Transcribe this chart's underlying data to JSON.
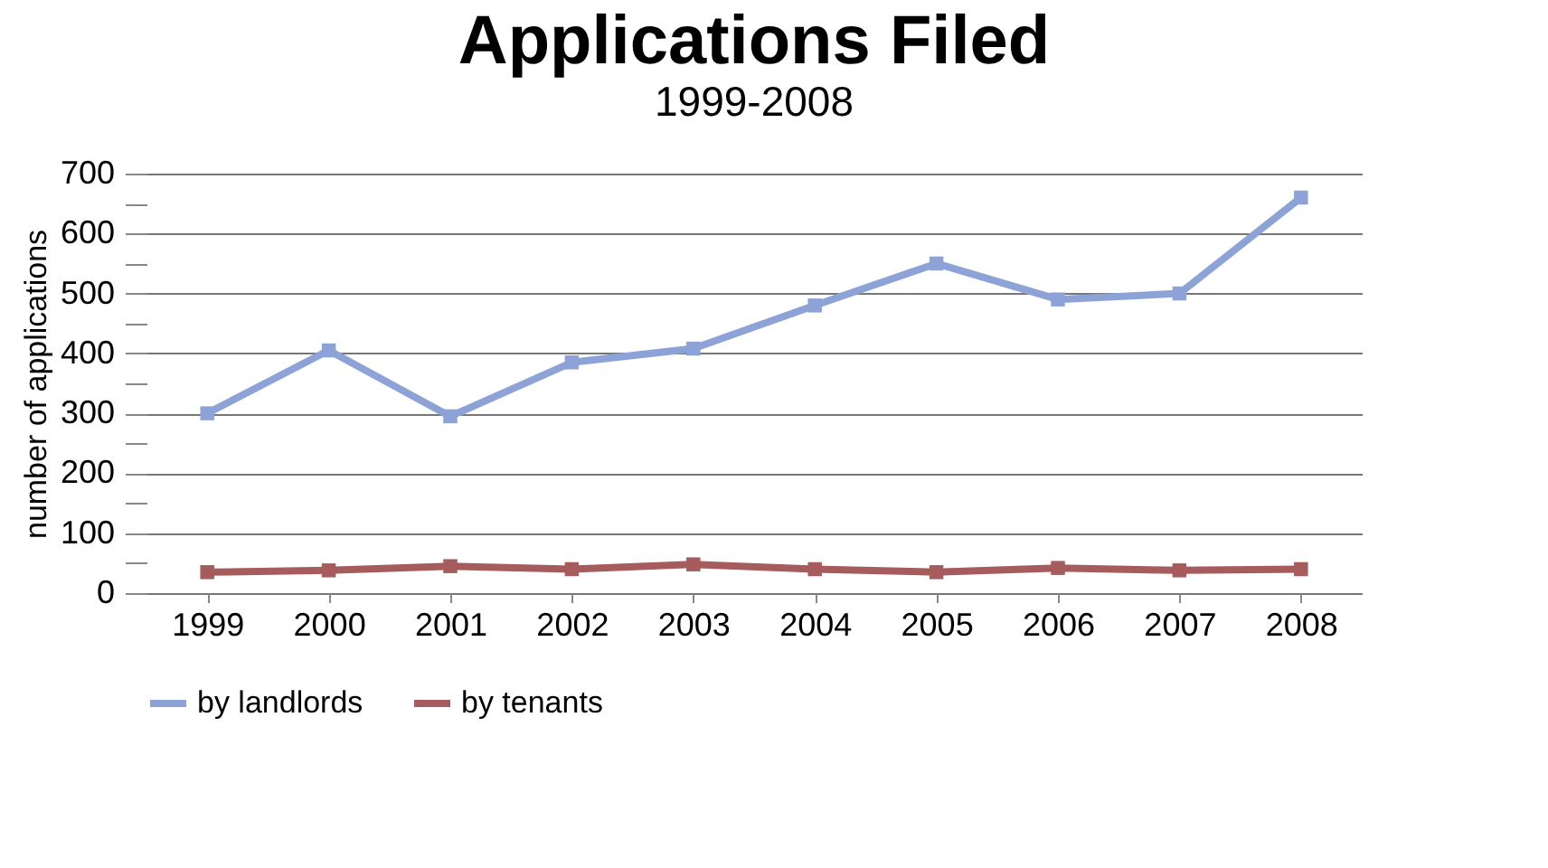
{
  "chart_data": {
    "type": "line",
    "title": "Applications Filed",
    "subtitle": "1999-2008",
    "ylabel": "number of applications",
    "categories": [
      "1999",
      "2000",
      "2001",
      "2002",
      "2003",
      "2004",
      "2005",
      "2006",
      "2007",
      "2008"
    ],
    "series": [
      {
        "name": "by landlords",
        "color": "#8da2d6",
        "values": [
          300,
          405,
          295,
          385,
          408,
          480,
          550,
          490,
          500,
          660
        ]
      },
      {
        "name": "by tenants",
        "color": "#a65c5c",
        "values": [
          35,
          38,
          45,
          40,
          48,
          40,
          35,
          42,
          38,
          40
        ]
      }
    ],
    "ylim": [
      0,
      700
    ],
    "yticks": [
      0,
      {
        "value": 50,
        "label": null
      },
      100,
      {
        "value": 150,
        "label": null
      },
      200,
      {
        "value": 250,
        "label": null
      },
      300,
      {
        "value": 350,
        "label": null
      },
      400,
      {
        "value": 450,
        "label": null
      },
      500,
      {
        "value": 550,
        "label": null
      },
      600,
      {
        "value": 650,
        "label": null
      },
      700
    ],
    "grid": "y",
    "legend": "bottom",
    "marker": "square",
    "line_style": "solid"
  }
}
